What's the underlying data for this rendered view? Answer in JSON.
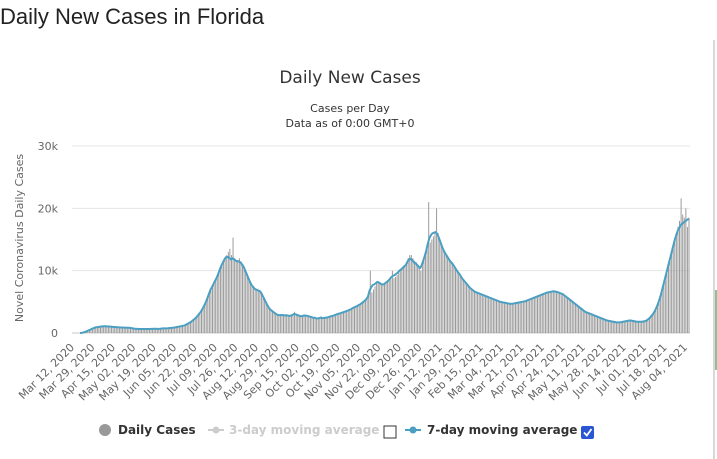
{
  "page": {
    "title": "Daily New Cases in Florida"
  },
  "colors": {
    "bars": "#999999",
    "line": "#4a9fc2",
    "grid": "#e6e6e6",
    "legend_inactive": "#cccccc",
    "checkbox_checked": "#2a56d6"
  },
  "chart_data": {
    "type": "bar",
    "title": "Daily New Cases",
    "subtitle": "Cases per Day",
    "subtitle2": "Data as of 0:00 GMT+0",
    "ylabel": "Novel Coronavirus Daily Cases",
    "xlabel": "",
    "ylim": [
      0,
      30000
    ],
    "yticks": [
      "0",
      "10k",
      "20k",
      "30k"
    ],
    "grid": true,
    "legend_placement": "bottom-center",
    "xticks": [
      "Mar 12, 2020",
      "Mar 29, 2020",
      "Apr 15, 2020",
      "May 02, 2020",
      "May 19, 2020",
      "Jun 05, 2020",
      "Jun 22, 2020",
      "Jul 09, 2020",
      "Jul 26, 2020",
      "Aug 12, 2020",
      "Aug 29, 2020",
      "Sep 15, 2020",
      "Oct 02, 2020",
      "Oct 19, 2020",
      "Nov 05, 2020",
      "Nov 22, 2020",
      "Dec 09, 2020",
      "Dec 26, 2020",
      "Jan 12, 2021",
      "Jan 29, 2021",
      "Feb 15, 2021",
      "Mar 04, 2021",
      "Mar 21, 2021",
      "Apr 07, 2021",
      "Apr 24, 2021",
      "May 11, 2021",
      "May 28, 2021",
      "Jun 14, 2021",
      "Jul 01, 2021",
      "Jul 18, 2021",
      "Aug 04, 2021"
    ],
    "series": [
      {
        "name": "Daily Cases",
        "values": [
          5,
          40,
          120,
          200,
          300,
          420,
          520,
          640,
          780,
          880,
          930,
          980,
          1000,
          1050,
          1100,
          1120,
          1100,
          1050,
          1040,
          1060,
          1000,
          980,
          950,
          930,
          920,
          900,
          880,
          900,
          880,
          860,
          840,
          820,
          880,
          700,
          690,
          650,
          650,
          650,
          650,
          640,
          640,
          640,
          630,
          640,
          650,
          660,
          700,
          680,
          660,
          650,
          680,
          720,
          760,
          780,
          700,
          750,
          800,
          820,
          840,
          860,
          900,
          950,
          1000,
          1050,
          1100,
          1150,
          1200,
          1300,
          1500,
          1600,
          1700,
          1900,
          2100,
          2300,
          2500,
          2900,
          3200,
          3500,
          4000,
          4500,
          5000,
          5800,
          6500,
          7200,
          7500,
          8000,
          8500,
          9000,
          9600,
          10500,
          11000,
          11500,
          12000,
          12500,
          13000,
          13500,
          12500,
          15300,
          12000,
          11500,
          11700,
          12000,
          11500,
          11000,
          10500,
          9800,
          9000,
          8500,
          8000,
          7600,
          7300,
          7000,
          6900,
          6800,
          6700,
          6500,
          6000,
          5500,
          5000,
          4500,
          4000,
          3800,
          3600,
          3400,
          3200,
          3000,
          2900,
          2850,
          3000,
          2850,
          2800,
          3000,
          2750,
          2700,
          2800,
          3000,
          3400,
          3000,
          2800,
          2700,
          2600,
          2700,
          3000,
          2800,
          2800,
          2700,
          2600,
          2500,
          2400,
          2500,
          2300,
          2300,
          2400,
          2600,
          2300,
          2400,
          2500,
          2500,
          2600,
          2700,
          2700,
          2800,
          2900,
          3000,
          3100,
          3100,
          3200,
          3300,
          3400,
          3500,
          3600,
          3700,
          3800,
          4000,
          4100,
          4200,
          4300,
          4500,
          4600,
          4800,
          5000,
          5200,
          5500,
          6000,
          10000,
          6500,
          7000,
          7500,
          8000,
          8200,
          8000,
          7800,
          7700,
          7800,
          8000,
          8200,
          8400,
          8600,
          10000,
          8800,
          9000,
          9300,
          9600,
          10000,
          10200,
          10500,
          10800,
          11000,
          12000,
          12500,
          12500,
          12000,
          11600,
          11400,
          11000,
          10500,
          10000,
          11000,
          12000,
          13000,
          14000,
          21000,
          14500,
          15000,
          15500,
          16000,
          20000,
          16000,
          15000,
          14000,
          13500,
          13000,
          12500,
          12000,
          11600,
          11300,
          11000,
          10600,
          10200,
          9800,
          9500,
          9100,
          8700,
          8400,
          8100,
          7800,
          7500,
          7200,
          7000,
          6800,
          6600,
          6500,
          6400,
          6300,
          6200,
          6100,
          6000,
          5900,
          5800,
          5700,
          5600,
          5500,
          5400,
          5300,
          5200,
          5100,
          5000,
          4950,
          4900,
          4850,
          4800,
          4750,
          4700,
          4700,
          4700,
          4750,
          4800,
          4850,
          4900,
          4950,
          5000,
          5050,
          5100,
          5200,
          5300,
          5400,
          5500,
          5600,
          5700,
          5800,
          5900,
          6000,
          6100,
          6200,
          6300,
          6400,
          6500,
          6550,
          6600,
          6650,
          6700,
          6650,
          6600,
          6500,
          6400,
          6300,
          6200,
          6000,
          5800,
          5600,
          5400,
          5200,
          5000,
          4800,
          4600,
          4400,
          4200,
          4000,
          3800,
          3600,
          3400,
          3300,
          3200,
          3100,
          3000,
          2900,
          2800,
          2700,
          2600,
          2500,
          2400,
          2300,
          2200,
          2100,
          2000,
          1950,
          1900,
          1850,
          1800,
          1750,
          1700,
          1700,
          1700,
          1750,
          1800,
          1850,
          1900,
          1950,
          2000,
          2000,
          1950,
          1900,
          1850,
          1800,
          1800,
          1800,
          1800,
          1850,
          1900,
          2000,
          2200,
          2400,
          2700,
          3000,
          3400,
          3900,
          4500,
          5200,
          6000,
          7000,
          8000,
          9000,
          10000,
          11000,
          12000,
          13000,
          14000,
          15000,
          16000,
          17000,
          18000,
          21600,
          19000,
          18500,
          20000,
          17000,
          18500
        ]
      },
      {
        "name": "3-day moving average",
        "enabled": false
      },
      {
        "name": "7-day moving average",
        "enabled": true,
        "values": [
          0,
          20,
          80,
          150,
          250,
          380,
          480,
          600,
          720,
          820,
          900,
          950,
          980,
          1020,
          1060,
          1090,
          1090,
          1070,
          1050,
          1040,
          1010,
          980,
          960,
          940,
          920,
          900,
          890,
          880,
          870,
          860,
          850,
          840,
          820,
          770,
          720,
          690,
          670,
          660,
          650,
          650,
          645,
          640,
          640,
          640,
          645,
          655,
          670,
          680,
          675,
          665,
          665,
          690,
          720,
          740,
          740,
          750,
          770,
          800,
          820,
          850,
          890,
          930,
          980,
          1030,
          1080,
          1130,
          1190,
          1280,
          1420,
          1560,
          1700,
          1880,
          2080,
          2290,
          2530,
          2840,
          3160,
          3500,
          3940,
          4430,
          4960,
          5640,
          6320,
          6980,
          7450,
          7950,
          8450,
          8950,
          9600,
          10300,
          10900,
          11400,
          11900,
          12200,
          12200,
          12000,
          11800,
          12000,
          11800,
          11600,
          11500,
          11500,
          11300,
          11000,
          10600,
          10000,
          9400,
          8800,
          8200,
          7700,
          7400,
          7100,
          6950,
          6850,
          6750,
          6500,
          6000,
          5500,
          5000,
          4500,
          4050,
          3750,
          3550,
          3350,
          3150,
          2980,
          2880,
          2850,
          2880,
          2860,
          2820,
          2850,
          2800,
          2750,
          2780,
          2900,
          3050,
          3000,
          2900,
          2800,
          2700,
          2700,
          2780,
          2780,
          2780,
          2720,
          2640,
          2550,
          2450,
          2450,
          2350,
          2330,
          2380,
          2480,
          2380,
          2400,
          2450,
          2480,
          2560,
          2660,
          2700,
          2780,
          2880,
          2980,
          3080,
          3130,
          3220,
          3300,
          3400,
          3480,
          3580,
          3680,
          3780,
          3970,
          4080,
          4180,
          4300,
          4470,
          4590,
          4780,
          4980,
          5180,
          5450,
          5850,
          6800,
          7300,
          7700,
          7800,
          8000,
          8200,
          8100,
          7900,
          7800,
          7800,
          8000,
          8200,
          8400,
          8700,
          9000,
          9200,
          9300,
          9500,
          9700,
          10000,
          10200,
          10400,
          10700,
          10900,
          11400,
          11800,
          11900,
          11700,
          11400,
          11200,
          11000,
          10700,
          10400,
          10800,
          11500,
          12300,
          13200,
          14300,
          15200,
          15700,
          16000,
          16100,
          16200,
          15900,
          15300,
          14600,
          13900,
          13300,
          12800,
          12400,
          12000,
          11600,
          11300,
          11000,
          10600,
          10200,
          9800,
          9500,
          9100,
          8700,
          8400,
          8100,
          7800,
          7500,
          7200,
          7000,
          6800,
          6600,
          6500,
          6400,
          6300,
          6200,
          6100,
          6000,
          5900,
          5800,
          5700,
          5600,
          5500,
          5400,
          5300,
          5200,
          5100,
          5000,
          4950,
          4900,
          4850,
          4800,
          4750,
          4700,
          4700,
          4700,
          4750,
          4800,
          4850,
          4900,
          4950,
          5000,
          5050,
          5100,
          5200,
          5300,
          5400,
          5500,
          5600,
          5700,
          5800,
          5900,
          6000,
          6100,
          6200,
          6300,
          6400,
          6500,
          6550,
          6600,
          6650,
          6700,
          6650,
          6600,
          6500,
          6400,
          6300,
          6200,
          6000,
          5800,
          5600,
          5400,
          5200,
          5000,
          4800,
          4600,
          4400,
          4200,
          4000,
          3800,
          3600,
          3400,
          3300,
          3200,
          3100,
          3000,
          2900,
          2800,
          2700,
          2600,
          2500,
          2400,
          2300,
          2200,
          2100,
          2000,
          1950,
          1900,
          1850,
          1800,
          1750,
          1700,
          1700,
          1700,
          1750,
          1800,
          1850,
          1900,
          1950,
          2000,
          2000,
          1950,
          1900,
          1850,
          1800,
          1800,
          1800,
          1800,
          1850,
          1900,
          2000,
          2200,
          2400,
          2700,
          3000,
          3400,
          3900,
          4500,
          5200,
          6000,
          7000,
          8000,
          9000,
          10000,
          11000,
          12000,
          13000,
          14000,
          15000,
          15800,
          16500,
          17000,
          17400,
          17600,
          17800,
          18000,
          18200,
          18300
        ]
      }
    ]
  },
  "legend": {
    "items": [
      {
        "label": "Daily Cases",
        "active": true
      },
      {
        "label": "3-day moving average",
        "active": false,
        "checked": false
      },
      {
        "label": "7-day moving average",
        "active": true,
        "checked": true
      }
    ]
  }
}
